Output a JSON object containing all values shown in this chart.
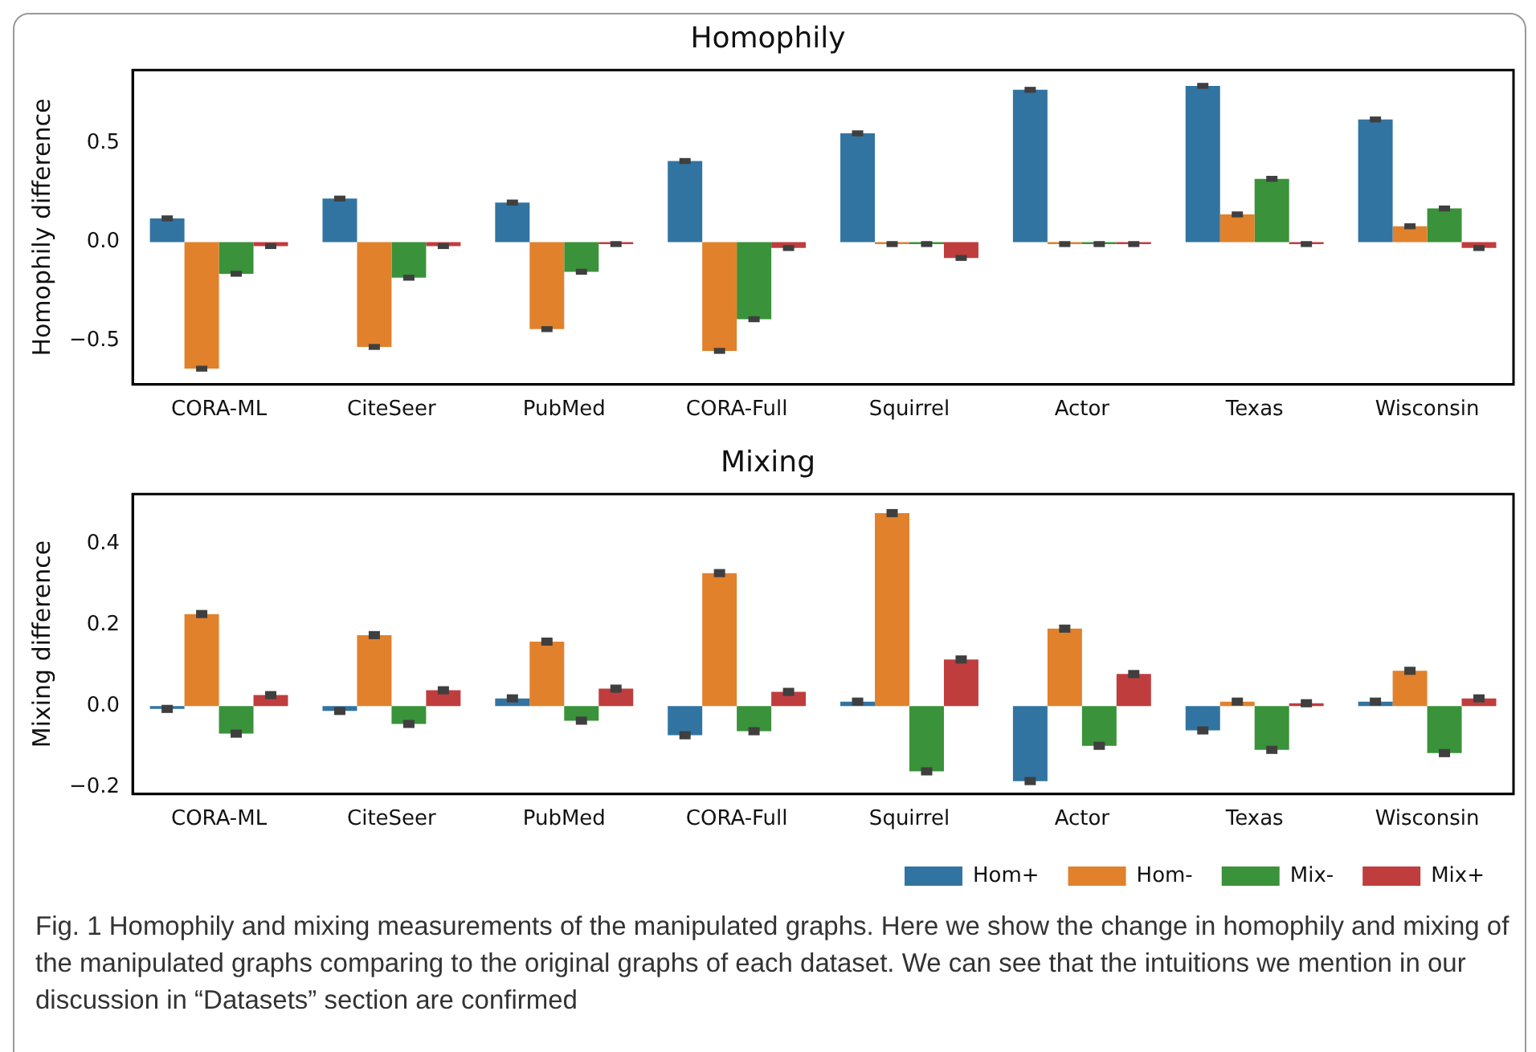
{
  "chart_data": [
    {
      "type": "bar",
      "title": "Homophily",
      "ylabel": "Homophily difference",
      "categories": [
        "CORA-ML",
        "CiteSeer",
        "PubMed",
        "CORA-Full",
        "Squirrel",
        "Actor",
        "Texas",
        "Wisconsin"
      ],
      "series": [
        {
          "color": "#3274a1",
          "values": [
            0.12,
            0.22,
            0.2,
            0.41,
            0.55,
            0.77,
            0.79,
            0.62
          ],
          "errors": [
            0.015,
            0.015,
            0.015,
            0.015,
            0.015,
            0.015,
            0.015,
            0.015
          ]
        },
        {
          "color": "#e1812c",
          "values": [
            -0.64,
            -0.53,
            -0.44,
            -0.55,
            -0.01,
            -0.01,
            0.14,
            0.08
          ],
          "errors": [
            0.015,
            0.015,
            0.015,
            0.015,
            0.015,
            0.015,
            0.015,
            0.015
          ]
        },
        {
          "color": "#3a923a",
          "values": [
            -0.16,
            -0.18,
            -0.15,
            -0.39,
            -0.01,
            -0.01,
            0.32,
            0.17
          ],
          "errors": [
            0.015,
            0.015,
            0.015,
            0.015,
            0.015,
            0.015,
            0.015,
            0.015
          ]
        },
        {
          "color": "#c03d3e",
          "values": [
            -0.02,
            -0.02,
            -0.01,
            -0.03,
            -0.08,
            -0.01,
            -0.01,
            -0.03
          ],
          "errors": [
            0.015,
            0.015,
            0.015,
            0.015,
            0.015,
            0.015,
            0.015,
            0.015
          ]
        }
      ],
      "ylim": [
        -0.72,
        0.87
      ],
      "yticks": [
        {
          "value": -0.5,
          "label": "−0.5"
        },
        {
          "value": 0,
          "label": "0.0"
        },
        0.5
      ],
      "grid": false
    },
    {
      "type": "bar",
      "title": "Mixing",
      "ylabel": "Mixing difference",
      "categories": [
        "CORA-ML",
        "CiteSeer",
        "PubMed",
        "CORA-Full",
        "Squirrel",
        "Actor",
        "Texas",
        "Wisconsin"
      ],
      "series": [
        {
          "name": "Hom+",
          "color": "#3274a1",
          "values": [
            -0.007,
            -0.012,
            0.019,
            -0.072,
            0.011,
            -0.185,
            -0.06,
            0.011
          ],
          "errors": [
            0.01,
            0.01,
            0.01,
            0.01,
            0.01,
            0.01,
            0.01,
            0.01
          ]
        },
        {
          "name": "Hom-",
          "color": "#e1812c",
          "values": [
            0.227,
            0.175,
            0.159,
            0.328,
            0.476,
            0.191,
            0.011,
            0.087
          ],
          "errors": [
            0.01,
            0.01,
            0.01,
            0.01,
            0.01,
            0.01,
            0.01,
            0.01
          ]
        },
        {
          "name": "Mix-",
          "color": "#3a923a",
          "values": [
            -0.068,
            -0.044,
            -0.036,
            -0.062,
            -0.161,
            -0.098,
            -0.108,
            -0.116
          ],
          "errors": [
            0.01,
            0.01,
            0.01,
            0.01,
            0.01,
            0.01,
            0.01,
            0.01
          ]
        },
        {
          "name": "Mix+",
          "color": "#c03d3e",
          "values": [
            0.027,
            0.039,
            0.043,
            0.035,
            0.115,
            0.079,
            0.007,
            0.019
          ],
          "errors": [
            0.01,
            0.01,
            0.01,
            0.01,
            0.01,
            0.01,
            0.01,
            0.01
          ]
        }
      ],
      "ylim": [
        -0.217,
        0.523
      ],
      "yticks": [
        {
          "value": -0.2,
          "label": "−0.2"
        },
        {
          "value": 0,
          "label": "0.0"
        },
        0.2,
        0.4
      ],
      "grid": false,
      "legend": "bottom",
      "annotations": [
        "Fig. 1  Homophily and mixing measurements of the manipulated graphs. Here we show the change in homophily and mixing of the manipulated graphs comparing to the original graphs of each dataset. We can see that the intuitions we mention in our discussion in “Datasets” section are confirmed"
      ]
    }
  ]
}
